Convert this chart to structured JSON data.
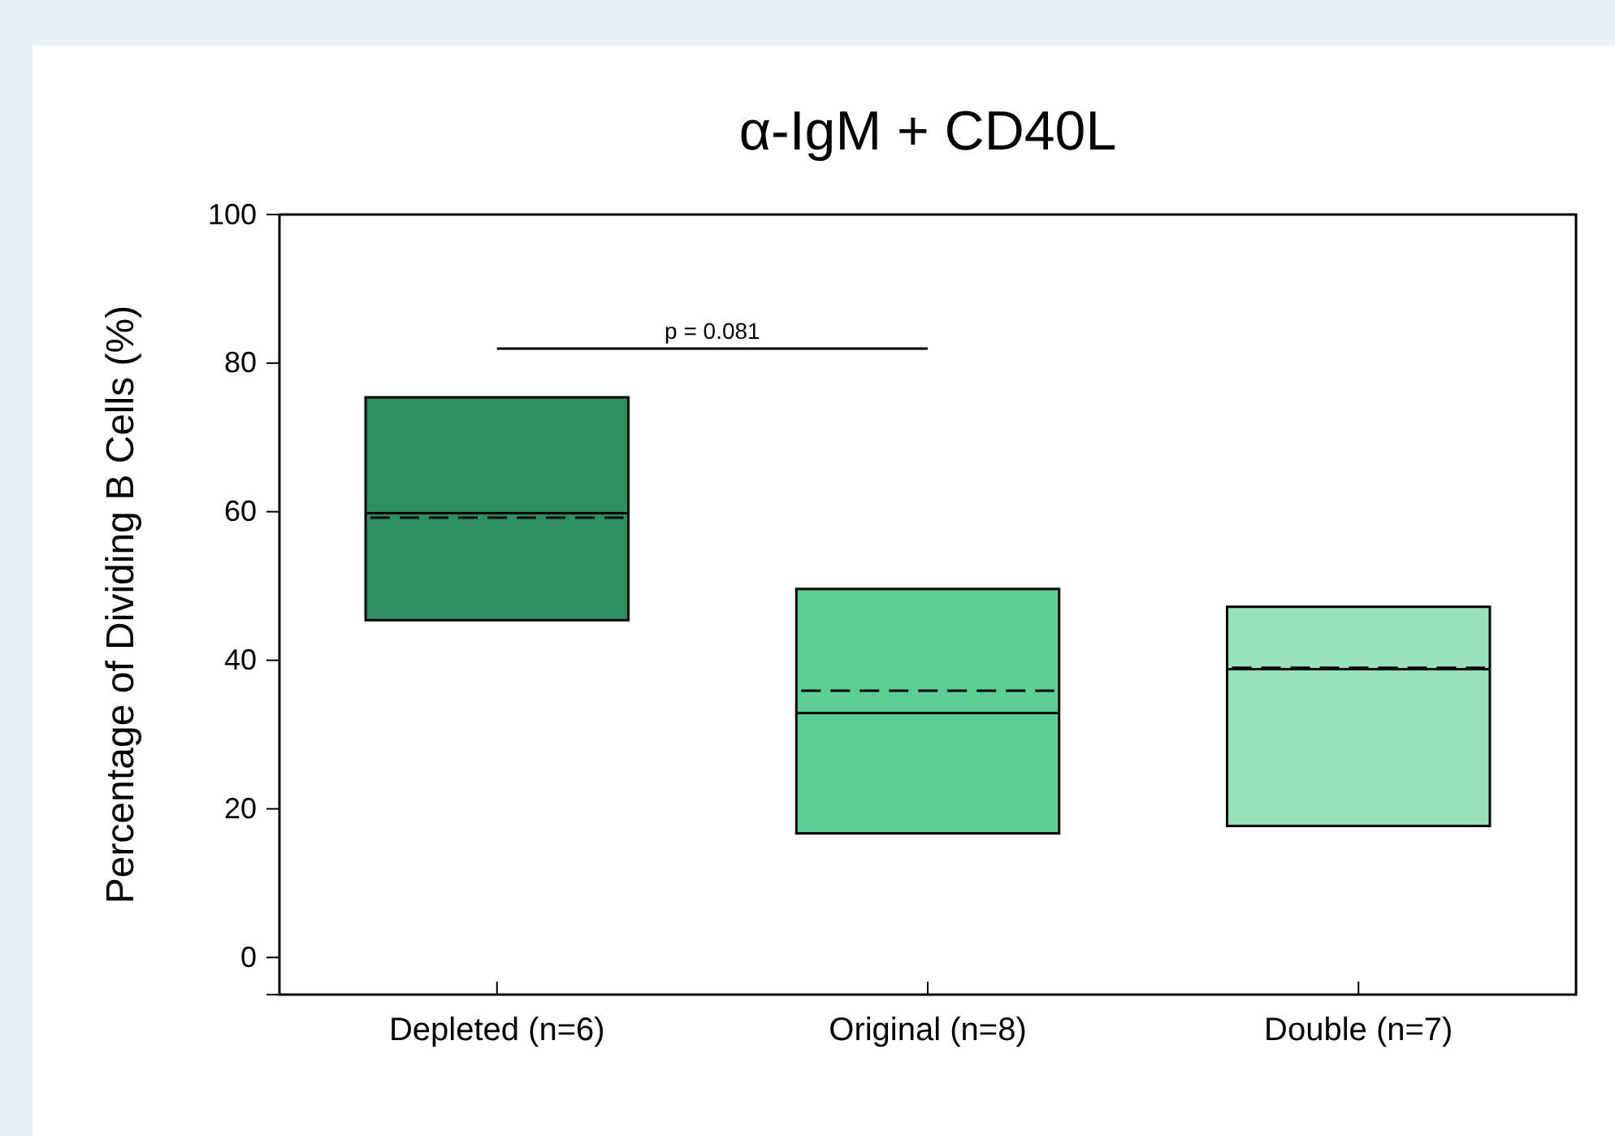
{
  "chart_data": {
    "type": "box",
    "title": "α-IgM + CD40L",
    "ylabel": "Percentage of Dividing B Cells (%)",
    "categories": [
      "Depleted (n=6)",
      "Original (n=8)",
      "Double (n=7)"
    ],
    "colors": [
      "#2e9060",
      "#5dce93",
      "#98e1ba"
    ],
    "boxes": [
      {
        "low": 45.4,
        "q1": 45.4,
        "median": 59.8,
        "mean": 59.2,
        "q3": 75.4,
        "high": 75.4
      },
      {
        "low": 16.7,
        "q1": 16.7,
        "median": 32.9,
        "mean": 35.9,
        "q3": 49.6,
        "high": 49.6
      },
      {
        "low": 17.7,
        "q1": 17.7,
        "median": 38.8,
        "mean": 39.0,
        "q3": 47.2,
        "high": 47.2
      }
    ],
    "ylim": [
      -5,
      100
    ],
    "yticks": [
      0,
      20,
      40,
      60,
      80,
      100
    ],
    "grid": false,
    "annotations": [
      "p = 0.081"
    ]
  }
}
